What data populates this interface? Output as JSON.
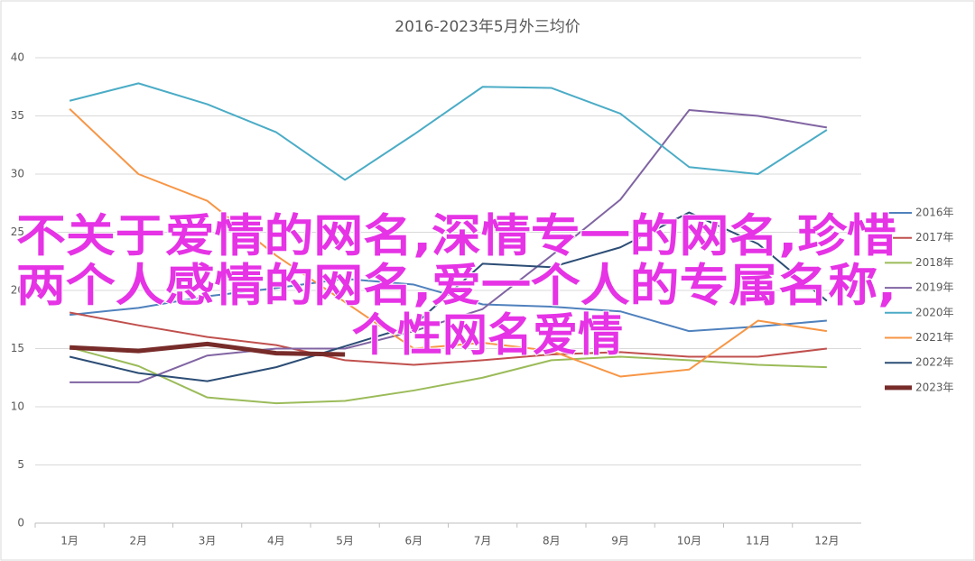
{
  "chart_data": {
    "type": "line",
    "title": "2016-2023年5月外三均价",
    "categories": [
      "1月",
      "2月",
      "3月",
      "4月",
      "5月",
      "6月",
      "7月",
      "8月",
      "9月",
      "10月",
      "11月",
      "12月"
    ],
    "ylim": [
      0,
      40
    ],
    "yticks": [
      0,
      5,
      10,
      15,
      20,
      25,
      30,
      35,
      40
    ],
    "grid": true,
    "legend": "right",
    "series": [
      {
        "name": "2016年",
        "color": "#4f81bd",
        "width": 2,
        "values": [
          17.9,
          18.5,
          19.5,
          20.2,
          21.0,
          20.5,
          18.8,
          18.6,
          18.2,
          16.5,
          16.9,
          17.4
        ]
      },
      {
        "name": "2017年",
        "color": "#c0504d",
        "width": 2,
        "values": [
          18.1,
          17.0,
          16.0,
          15.3,
          14.0,
          13.6,
          14.0,
          14.5,
          14.7,
          14.3,
          14.3,
          15.0
        ]
      },
      {
        "name": "2018年",
        "color": "#9bbb59",
        "width": 2,
        "values": [
          15.1,
          13.5,
          10.8,
          10.3,
          10.5,
          11.4,
          12.5,
          14.0,
          14.3,
          14.0,
          13.6,
          13.4
        ]
      },
      {
        "name": "2019年",
        "color": "#8064a2",
        "width": 2,
        "values": [
          12.1,
          12.1,
          14.4,
          15.0,
          15.0,
          16.5,
          18.4,
          23.0,
          27.8,
          35.5,
          35.0,
          34.0
        ]
      },
      {
        "name": "2020年",
        "color": "#4bacc6",
        "width": 2,
        "values": [
          36.3,
          37.8,
          36.0,
          33.6,
          29.5,
          33.4,
          37.5,
          37.4,
          35.2,
          30.6,
          30.0,
          33.8
        ]
      },
      {
        "name": "2021年",
        "color": "#f79646",
        "width": 2,
        "values": [
          35.6,
          30.0,
          27.7,
          23.0,
          19.0,
          15.0,
          15.5,
          14.8,
          12.6,
          13.2,
          17.4,
          16.5
        ]
      },
      {
        "name": "2022年",
        "color": "#2c4d75",
        "width": 2,
        "values": [
          14.3,
          12.9,
          12.2,
          13.4,
          15.2,
          17.0,
          22.3,
          22.0,
          23.7,
          26.7,
          24.0,
          19.1
        ]
      },
      {
        "name": "2023年",
        "color": "#772c2a",
        "width": 5,
        "values": [
          15.1,
          14.8,
          15.4,
          14.6,
          14.5,
          null,
          null,
          null,
          null,
          null,
          null,
          null
        ]
      }
    ],
    "annotations": [
      "不关于爱情的网名,深情专一的网名,珍惜",
      "两个人感情的网名,爱一个人的专属名称,",
      "个性网名爱情"
    ]
  }
}
